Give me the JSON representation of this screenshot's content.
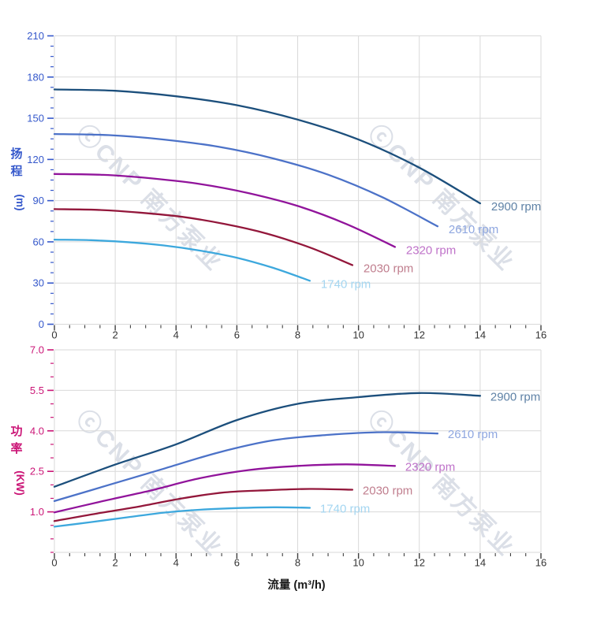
{
  "page": {
    "background": "#ffffff"
  },
  "watermark": {
    "text": "ⓒCNP 南方泵业",
    "color": "rgba(165,175,195,0.40)"
  },
  "xlabel": "流量 (m³/h)",
  "style": {
    "grid_color": "#d9d9d9",
    "x_tick_color": "#3f3f3f",
    "x_label_color": "#333333"
  },
  "chart_data": [
    {
      "type": "line",
      "id": "head",
      "title": "",
      "ylabel": "扬程(m)",
      "ylabel_stack": [
        "扬",
        "程"
      ],
      "ylabel_unit": "(m)",
      "xlabel": "流量 (m³/h)",
      "xlim": [
        0,
        16
      ],
      "ylim": [
        0,
        210
      ],
      "grid": true,
      "legend_position": "end-of-curve",
      "axis_color": "#3558cb",
      "x_majors": [
        0,
        2,
        4,
        6,
        8,
        10,
        12,
        14,
        16
      ],
      "x_tick_labels": [
        "0",
        "2",
        "4",
        "6",
        "8",
        "10",
        "12",
        "14",
        "16"
      ],
      "x_minor_step": 0.5,
      "y_majors": [
        0,
        30,
        60,
        90,
        120,
        150,
        180,
        210
      ],
      "y_tick_labels": [
        "0",
        "30",
        "60",
        "90",
        "120",
        "150",
        "180",
        "210"
      ],
      "y_minor_step": 7.5,
      "series": [
        {
          "name": "2900 rpm",
          "color": "#1c4f7c",
          "label_color": "#5f82a6",
          "points": [
            [
              0,
              171
            ],
            [
              2,
              170
            ],
            [
              4,
              166
            ],
            [
              6,
              159.5
            ],
            [
              8,
              149
            ],
            [
              10,
              134.5
            ],
            [
              12,
              114
            ],
            [
              14,
              88
            ]
          ]
        },
        {
          "name": "2610 rpm",
          "color": "#4c72c8",
          "label_color": "#8fa7e0",
          "points": [
            [
              0,
              138.5
            ],
            [
              1.8,
              137.7
            ],
            [
              3.6,
              134.5
            ],
            [
              5.4,
              129.2
            ],
            [
              7.2,
              120.7
            ],
            [
              9,
              108.9
            ],
            [
              10.8,
              92.3
            ],
            [
              12.6,
              71.3
            ]
          ]
        },
        {
          "name": "2320 rpm",
          "color": "#91149b",
          "label_color": "#bf72c9",
          "points": [
            [
              0,
              109.4
            ],
            [
              1.6,
              108.8
            ],
            [
              3.2,
              106.2
            ],
            [
              4.8,
              102.1
            ],
            [
              6.4,
              95.4
            ],
            [
              8,
              86.1
            ],
            [
              9.6,
              73
            ],
            [
              11.2,
              56.3
            ]
          ]
        },
        {
          "name": "2030 rpm",
          "color": "#93173b",
          "label_color": "#c07e8e",
          "points": [
            [
              0,
              83.8
            ],
            [
              1.4,
              83.3
            ],
            [
              2.8,
              81.3
            ],
            [
              4.2,
              78.2
            ],
            [
              5.6,
              73
            ],
            [
              7,
              65.9
            ],
            [
              8.4,
              55.9
            ],
            [
              9.8,
              43.1
            ]
          ]
        },
        {
          "name": "1740 rpm",
          "color": "#3da8dd",
          "label_color": "#a4d6f1",
          "points": [
            [
              0,
              61.6
            ],
            [
              1.2,
              61.2
            ],
            [
              2.4,
              59.8
            ],
            [
              3.6,
              57.4
            ],
            [
              4.8,
              53.6
            ],
            [
              6,
              48.4
            ],
            [
              7.2,
              41
            ],
            [
              8.4,
              31.7
            ]
          ]
        }
      ]
    },
    {
      "type": "line",
      "id": "power",
      "title": "",
      "ylabel": "功率(KW)",
      "ylabel_stack": [
        "功",
        "率"
      ],
      "ylabel_unit": "(KW)",
      "xlabel": "流量 (m³/h)",
      "xlim": [
        0,
        16
      ],
      "ylim": [
        -0.5,
        7.0
      ],
      "grid": true,
      "legend_position": "end-of-curve",
      "axis_color": "#cb1677",
      "x_majors": [
        0,
        2,
        4,
        6,
        8,
        10,
        12,
        14,
        16
      ],
      "x_tick_labels": [
        "0",
        "2",
        "4",
        "6",
        "8",
        "10",
        "12",
        "14",
        "16"
      ],
      "x_minor_step": 0.5,
      "y_majors": [
        1.0,
        2.5,
        4.0,
        5.5,
        7.0
      ],
      "y_tick_labels": [
        "1.0",
        "2.5",
        "4.0",
        "5.5",
        "7.0"
      ],
      "y_minor_step": 0.5,
      "series": [
        {
          "name": "2900 rpm",
          "color": "#1c4f7c",
          "label_color": "#5f82a6",
          "points": [
            [
              0,
              1.93
            ],
            [
              2,
              2.75
            ],
            [
              4,
              3.5
            ],
            [
              6,
              4.4
            ],
            [
              8,
              5.0
            ],
            [
              10,
              5.25
            ],
            [
              12,
              5.4
            ],
            [
              14,
              5.3
            ]
          ]
        },
        {
          "name": "2610 rpm",
          "color": "#4c72c8",
          "label_color": "#8fa7e0",
          "points": [
            [
              0,
              1.4
            ],
            [
              1.8,
              2.0
            ],
            [
              3.6,
              2.6
            ],
            [
              5.4,
              3.2
            ],
            [
              7.2,
              3.65
            ],
            [
              9,
              3.85
            ],
            [
              10.8,
              3.95
            ],
            [
              12.6,
              3.9
            ]
          ]
        },
        {
          "name": "2320 rpm",
          "color": "#91149b",
          "label_color": "#bf72c9",
          "points": [
            [
              0,
              0.98
            ],
            [
              1.6,
              1.4
            ],
            [
              3.2,
              1.8
            ],
            [
              4.8,
              2.25
            ],
            [
              6.4,
              2.55
            ],
            [
              8,
              2.7
            ],
            [
              9.6,
              2.76
            ],
            [
              11.2,
              2.7
            ]
          ]
        },
        {
          "name": "2030 rpm",
          "color": "#93173b",
          "label_color": "#c07e8e",
          "points": [
            [
              0,
              0.66
            ],
            [
              1.4,
              0.94
            ],
            [
              2.8,
              1.2
            ],
            [
              4.2,
              1.5
            ],
            [
              5.6,
              1.72
            ],
            [
              7,
              1.8
            ],
            [
              8.4,
              1.85
            ],
            [
              9.8,
              1.82
            ]
          ]
        },
        {
          "name": "1740 rpm",
          "color": "#3da8dd",
          "label_color": "#a4d6f1",
          "points": [
            [
              0,
              0.45
            ],
            [
              1.2,
              0.62
            ],
            [
              2.4,
              0.8
            ],
            [
              3.6,
              0.97
            ],
            [
              4.8,
              1.08
            ],
            [
              6,
              1.14
            ],
            [
              7.2,
              1.17
            ],
            [
              8.4,
              1.15
            ]
          ]
        }
      ]
    }
  ]
}
